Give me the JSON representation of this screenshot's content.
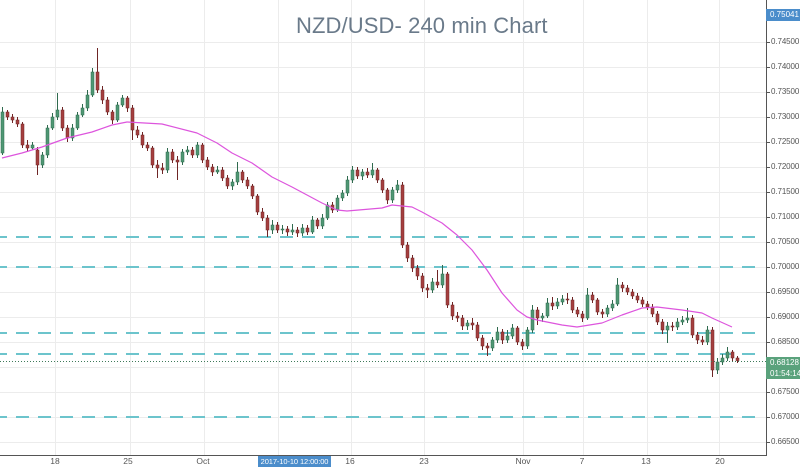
{
  "chart_data": {
    "type": "candlestick",
    "title": "NZD/USD- 240 min Chart",
    "symbol": "NZD/USD",
    "interval": "240 min",
    "xlabel": "",
    "ylabel": "",
    "ylim": [
      0.6624,
      0.7534
    ],
    "ygrid": {
      "start": 0.665,
      "end": 0.745,
      "step": 0.005
    },
    "grid": true,
    "yticks": [
      "0.74500",
      "0.74000",
      "0.73500",
      "0.73000",
      "0.72500",
      "0.72000",
      "0.71500",
      "0.71000",
      "0.70500",
      "0.70000",
      "0.69500",
      "0.69000",
      "0.68500",
      "0.67500",
      "0.67000",
      "0.66500"
    ],
    "xticks": [
      {
        "label": "18",
        "bar_index": 10.6
      },
      {
        "label": "25",
        "bar_index": 25.2
      },
      {
        "label": "Oct",
        "bar_index": 40.2
      },
      {
        "label": "16",
        "bar_index": 69.6
      },
      {
        "label": "23",
        "bar_index": 84.4
      },
      {
        "label": "Nov",
        "bar_index": 104.2
      },
      {
        "label": "7",
        "bar_index": 116.0
      },
      {
        "label": "13",
        "bar_index": 128.8
      },
      {
        "label": "20",
        "bar_index": 143.6
      }
    ],
    "xgrid_bar_index": [
      10.6,
      25.6,
      40.4,
      55.2,
      69.8,
      84.4,
      104.2,
      116.2,
      129.0,
      143.4
    ],
    "crosshair_time_label": {
      "text": "2017-10-10 12:00:00",
      "bar_index": 58.4
    },
    "high_price_label": {
      "value": "0.75041"
    },
    "last_price": {
      "value": "0.68128",
      "countdown": "01:54:14"
    },
    "horizontal_levels": [
      0.706,
      0.7,
      0.6868,
      0.6826,
      0.67
    ],
    "moving_average": {
      "name": "MA",
      "points": [
        [
          0,
          0.7218
        ],
        [
          4,
          0.7228
        ],
        [
          8,
          0.724
        ],
        [
          13,
          0.7258
        ],
        [
          18,
          0.727
        ],
        [
          22,
          0.7284
        ],
        [
          25,
          0.729
        ],
        [
          32,
          0.7286
        ],
        [
          39,
          0.7268
        ],
        [
          43,
          0.7248
        ],
        [
          46,
          0.7228
        ],
        [
          50,
          0.7208
        ],
        [
          54,
          0.718
        ],
        [
          58,
          0.716
        ],
        [
          64,
          0.7128
        ],
        [
          67,
          0.7114
        ],
        [
          69,
          0.7112
        ],
        [
          76,
          0.7118
        ],
        [
          78,
          0.7124
        ],
        [
          82,
          0.712
        ],
        [
          84,
          0.711
        ],
        [
          88,
          0.7088
        ],
        [
          91,
          0.7064
        ],
        [
          94,
          0.7034
        ],
        [
          97,
          0.6994
        ],
        [
          100,
          0.6948
        ],
        [
          103,
          0.6914
        ],
        [
          105,
          0.69
        ],
        [
          107,
          0.6894
        ],
        [
          112,
          0.6884
        ],
        [
          115,
          0.688
        ],
        [
          120,
          0.6888
        ],
        [
          124,
          0.6904
        ],
        [
          128,
          0.6918
        ],
        [
          131,
          0.692
        ],
        [
          136,
          0.6914
        ],
        [
          140,
          0.6908
        ],
        [
          142,
          0.6898
        ],
        [
          146,
          0.688
        ]
      ]
    },
    "candles_format": [
      "open",
      "high",
      "low",
      "close"
    ],
    "candles": [
      [
        0.7228,
        0.732,
        0.7224,
        0.731
      ],
      [
        0.731,
        0.7314,
        0.7294,
        0.73
      ],
      [
        0.73,
        0.7306,
        0.7288,
        0.7294
      ],
      [
        0.7294,
        0.73,
        0.728,
        0.7286
      ],
      [
        0.7286,
        0.729,
        0.7238,
        0.7244
      ],
      [
        0.7244,
        0.7254,
        0.723,
        0.7238
      ],
      [
        0.7238,
        0.725,
        0.7234,
        0.7244
      ],
      [
        0.7234,
        0.724,
        0.7184,
        0.7204
      ],
      [
        0.7204,
        0.723,
        0.7198,
        0.7224
      ],
      [
        0.7224,
        0.7284,
        0.7218,
        0.7278
      ],
      [
        0.7278,
        0.7308,
        0.7274,
        0.73
      ],
      [
        0.73,
        0.7348,
        0.7294,
        0.7314
      ],
      [
        0.7314,
        0.732,
        0.7272,
        0.7278
      ],
      [
        0.7278,
        0.7284,
        0.725,
        0.7258
      ],
      [
        0.7258,
        0.7286,
        0.7252,
        0.7278
      ],
      [
        0.7278,
        0.731,
        0.7274,
        0.7304
      ],
      [
        0.7304,
        0.7326,
        0.73,
        0.7318
      ],
      [
        0.7318,
        0.7354,
        0.7312,
        0.7344
      ],
      [
        0.7344,
        0.7398,
        0.734,
        0.739
      ],
      [
        0.739,
        0.7438,
        0.7348,
        0.7354
      ],
      [
        0.7354,
        0.7362,
        0.7326,
        0.7334
      ],
      [
        0.7334,
        0.734,
        0.7304,
        0.731
      ],
      [
        0.731,
        0.7314,
        0.7286,
        0.7294
      ],
      [
        0.7294,
        0.733,
        0.729,
        0.7324
      ],
      [
        0.7324,
        0.7344,
        0.732,
        0.7338
      ],
      [
        0.7338,
        0.7342,
        0.731,
        0.7318
      ],
      [
        0.7318,
        0.7324,
        0.7254,
        0.7274
      ],
      [
        0.7274,
        0.7282,
        0.7258,
        0.7264
      ],
      [
        0.7264,
        0.727,
        0.7238,
        0.7244
      ],
      [
        0.7244,
        0.725,
        0.7232,
        0.7238
      ],
      [
        0.7238,
        0.7242,
        0.7198,
        0.7204
      ],
      [
        0.7204,
        0.7214,
        0.7178,
        0.7198
      ],
      [
        0.7198,
        0.7208,
        0.7186,
        0.7194
      ],
      [
        0.7194,
        0.7238,
        0.7188,
        0.723
      ],
      [
        0.723,
        0.7236,
        0.7208,
        0.7214
      ],
      [
        0.7214,
        0.7222,
        0.7174,
        0.721
      ],
      [
        0.721,
        0.7236,
        0.7204,
        0.723
      ],
      [
        0.723,
        0.7242,
        0.7224,
        0.7234
      ],
      [
        0.7234,
        0.724,
        0.7218,
        0.7224
      ],
      [
        0.7224,
        0.725,
        0.7218,
        0.7244
      ],
      [
        0.7244,
        0.7248,
        0.7208,
        0.7214
      ],
      [
        0.7214,
        0.722,
        0.7194,
        0.72
      ],
      [
        0.72,
        0.7206,
        0.7182,
        0.719
      ],
      [
        0.719,
        0.7202,
        0.7186,
        0.7194
      ],
      [
        0.7194,
        0.72,
        0.7172,
        0.7178
      ],
      [
        0.7178,
        0.7184,
        0.7156,
        0.7162
      ],
      [
        0.7162,
        0.7176,
        0.7154,
        0.717
      ],
      [
        0.717,
        0.721,
        0.7164,
        0.719
      ],
      [
        0.719,
        0.7194,
        0.7168,
        0.7174
      ],
      [
        0.7174,
        0.718,
        0.7156,
        0.7162
      ],
      [
        0.7162,
        0.7166,
        0.7136,
        0.7142
      ],
      [
        0.7142,
        0.7146,
        0.7104,
        0.711
      ],
      [
        0.711,
        0.7118,
        0.7092,
        0.7098
      ],
      [
        0.7098,
        0.7104,
        0.706,
        0.7074
      ],
      [
        0.7074,
        0.7094,
        0.7066,
        0.7084
      ],
      [
        0.7084,
        0.709,
        0.7068,
        0.7074
      ],
      [
        0.7074,
        0.7084,
        0.7066,
        0.7076
      ],
      [
        0.7076,
        0.7082,
        0.7062,
        0.707
      ],
      [
        0.707,
        0.7086,
        0.7064,
        0.7074
      ],
      [
        0.7074,
        0.708,
        0.706,
        0.7068
      ],
      [
        0.7068,
        0.7086,
        0.7062,
        0.7078
      ],
      [
        0.7078,
        0.7084,
        0.7064,
        0.707
      ],
      [
        0.707,
        0.7102,
        0.7066,
        0.7094
      ],
      [
        0.7094,
        0.7098,
        0.7076,
        0.7082
      ],
      [
        0.7082,
        0.7106,
        0.7076,
        0.7098
      ],
      [
        0.7098,
        0.713,
        0.7094,
        0.7124
      ],
      [
        0.7124,
        0.713,
        0.7108,
        0.7114
      ],
      [
        0.7114,
        0.7144,
        0.711,
        0.7138
      ],
      [
        0.7138,
        0.7154,
        0.7132,
        0.7148
      ],
      [
        0.7148,
        0.7182,
        0.7142,
        0.7174
      ],
      [
        0.7174,
        0.7202,
        0.7168,
        0.7194
      ],
      [
        0.7194,
        0.72,
        0.7176,
        0.7182
      ],
      [
        0.7182,
        0.7196,
        0.7174,
        0.719
      ],
      [
        0.719,
        0.7198,
        0.7178,
        0.7184
      ],
      [
        0.7184,
        0.7208,
        0.7178,
        0.7194
      ],
      [
        0.7194,
        0.7198,
        0.7168,
        0.7174
      ],
      [
        0.7174,
        0.7178,
        0.7148,
        0.7154
      ],
      [
        0.7154,
        0.7158,
        0.7126,
        0.7134
      ],
      [
        0.7134,
        0.716,
        0.7128,
        0.7154
      ],
      [
        0.7154,
        0.7174,
        0.7148,
        0.7164
      ],
      [
        0.7164,
        0.717,
        0.7038,
        0.7044
      ],
      [
        0.7044,
        0.705,
        0.701,
        0.7018
      ],
      [
        0.7018,
        0.7024,
        0.699,
        0.6998
      ],
      [
        0.6998,
        0.7004,
        0.6974,
        0.6982
      ],
      [
        0.6982,
        0.6988,
        0.695,
        0.6958
      ],
      [
        0.6958,
        0.6966,
        0.6938,
        0.6954
      ],
      [
        0.6954,
        0.6978,
        0.6948,
        0.697
      ],
      [
        0.697,
        0.6994,
        0.6958,
        0.6964
      ],
      [
        0.6964,
        0.7004,
        0.6958,
        0.6986
      ],
      [
        0.6986,
        0.699,
        0.6918,
        0.6924
      ],
      [
        0.6924,
        0.693,
        0.6894,
        0.6902
      ],
      [
        0.6902,
        0.691,
        0.689,
        0.6898
      ],
      [
        0.6898,
        0.6904,
        0.6874,
        0.6882
      ],
      [
        0.6882,
        0.6894,
        0.6874,
        0.6888
      ],
      [
        0.6888,
        0.6898,
        0.6874,
        0.6884
      ],
      [
        0.6884,
        0.689,
        0.6852,
        0.6858
      ],
      [
        0.6858,
        0.6864,
        0.6834,
        0.6842
      ],
      [
        0.6842,
        0.6848,
        0.6822,
        0.6838
      ],
      [
        0.6838,
        0.686,
        0.6832,
        0.6854
      ],
      [
        0.6854,
        0.688,
        0.6848,
        0.687
      ],
      [
        0.687,
        0.6876,
        0.6846,
        0.6854
      ],
      [
        0.6854,
        0.6874,
        0.6848,
        0.6862
      ],
      [
        0.6862,
        0.6886,
        0.6856,
        0.6878
      ],
      [
        0.6878,
        0.6882,
        0.6844,
        0.685
      ],
      [
        0.685,
        0.6856,
        0.6834,
        0.6842
      ],
      [
        0.6842,
        0.688,
        0.6836,
        0.6874
      ],
      [
        0.6874,
        0.6924,
        0.6868,
        0.6914
      ],
      [
        0.6914,
        0.692,
        0.6884,
        0.6898
      ],
      [
        0.6898,
        0.6908,
        0.689,
        0.6902
      ],
      [
        0.6902,
        0.6938,
        0.6898,
        0.6928
      ],
      [
        0.6928,
        0.694,
        0.6914,
        0.6922
      ],
      [
        0.6922,
        0.6938,
        0.6916,
        0.693
      ],
      [
        0.693,
        0.6944,
        0.6924,
        0.6936
      ],
      [
        0.6936,
        0.6948,
        0.6926,
        0.6934
      ],
      [
        0.6934,
        0.694,
        0.6908,
        0.6914
      ],
      [
        0.6914,
        0.692,
        0.69,
        0.6906
      ],
      [
        0.6906,
        0.6912,
        0.689,
        0.6898
      ],
      [
        0.6898,
        0.6958,
        0.6894,
        0.6944
      ],
      [
        0.6944,
        0.695,
        0.6928,
        0.6934
      ],
      [
        0.6934,
        0.6938,
        0.6904,
        0.691
      ],
      [
        0.691,
        0.6916,
        0.6898,
        0.6906
      ],
      [
        0.6906,
        0.6924,
        0.69,
        0.6918
      ],
      [
        0.6918,
        0.6934,
        0.6912,
        0.6926
      ],
      [
        0.6926,
        0.6978,
        0.6922,
        0.6964
      ],
      [
        0.6964,
        0.697,
        0.695,
        0.6958
      ],
      [
        0.6958,
        0.6964,
        0.6944,
        0.695
      ],
      [
        0.695,
        0.6956,
        0.6936,
        0.6942
      ],
      [
        0.6942,
        0.6948,
        0.6928,
        0.6934
      ],
      [
        0.6934,
        0.694,
        0.692,
        0.6926
      ],
      [
        0.6926,
        0.6932,
        0.6914,
        0.692
      ],
      [
        0.692,
        0.6926,
        0.69,
        0.6906
      ],
      [
        0.6906,
        0.6912,
        0.6884,
        0.689
      ],
      [
        0.689,
        0.6896,
        0.6866,
        0.6874
      ],
      [
        0.6874,
        0.689,
        0.6848,
        0.6882
      ],
      [
        0.6882,
        0.689,
        0.6872,
        0.688
      ],
      [
        0.688,
        0.6898,
        0.6874,
        0.689
      ],
      [
        0.689,
        0.6902,
        0.6884,
        0.6894
      ],
      [
        0.6894,
        0.6918,
        0.6888,
        0.6898
      ],
      [
        0.6898,
        0.6904,
        0.6858,
        0.6864
      ],
      [
        0.6864,
        0.687,
        0.6846,
        0.6854
      ],
      [
        0.6854,
        0.6862,
        0.6844,
        0.685
      ],
      [
        0.685,
        0.6882,
        0.6844,
        0.6874
      ],
      [
        0.6874,
        0.688,
        0.678,
        0.6794
      ],
      [
        0.6794,
        0.6818,
        0.6786,
        0.681
      ],
      [
        0.681,
        0.6826,
        0.6804,
        0.6818
      ],
      [
        0.6818,
        0.684,
        0.6812,
        0.683
      ],
      [
        0.683,
        0.6834,
        0.6812,
        0.6818
      ],
      [
        0.6818,
        0.6822,
        0.6808,
        0.68128
      ]
    ],
    "legend": [],
    "colors": {
      "up": "#4f9774",
      "up_wick": "#2f6a4e",
      "down": "#a53f3f",
      "down_wick": "#6e2525",
      "ma": "#dd55dd",
      "level": "#6cc4cc",
      "grid": "#ececec",
      "axis": "#555555",
      "last_line": "#3f7a5a",
      "label_blue": "#4b8dcb",
      "label_green": "#5aa27c"
    }
  }
}
